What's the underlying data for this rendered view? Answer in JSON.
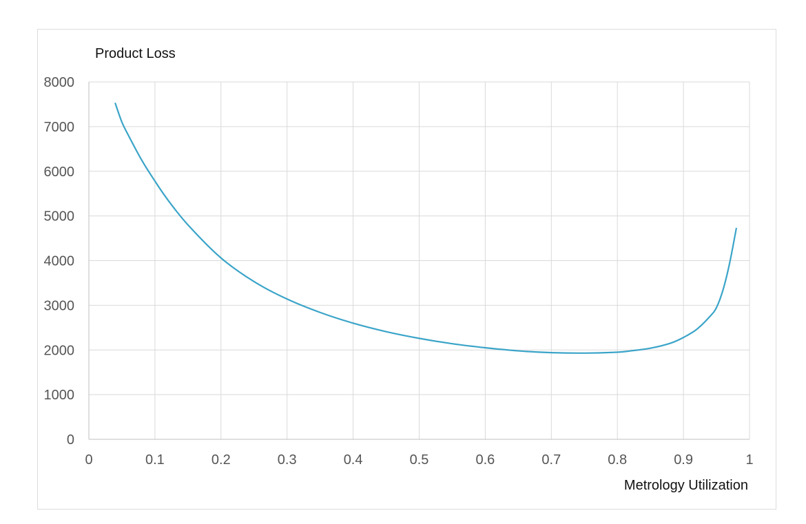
{
  "chart_data": {
    "type": "line",
    "title": "",
    "xlabel": "Metrology Utilization",
    "ylabel": "Product Loss",
    "xlim": [
      0,
      1
    ],
    "ylim": [
      0,
      8000
    ],
    "x_ticks": [
      "0",
      "0.1",
      "0.2",
      "0.3",
      "0.4",
      "0.5",
      "0.6",
      "0.7",
      "0.8",
      "0.9",
      "1"
    ],
    "y_ticks": [
      "0",
      "1000",
      "2000",
      "3000",
      "4000",
      "5000",
      "6000",
      "7000",
      "8000"
    ],
    "grid": true,
    "legend": "none",
    "series": [
      {
        "color": "#3aa4c8",
        "x": [
          0.04,
          0.05,
          0.06,
          0.08,
          0.1,
          0.12,
          0.15,
          0.2,
          0.25,
          0.3,
          0.35,
          0.4,
          0.45,
          0.5,
          0.55,
          0.6,
          0.65,
          0.7,
          0.75,
          0.8,
          0.82,
          0.85,
          0.88,
          0.9,
          0.92,
          0.94,
          0.95,
          0.96,
          0.97,
          0.98
        ],
        "y": [
          7520,
          7100,
          6800,
          6250,
          5780,
          5350,
          4800,
          4060,
          3530,
          3140,
          2840,
          2600,
          2410,
          2260,
          2140,
          2050,
          1980,
          1940,
          1930,
          1950,
          1980,
          2040,
          2150,
          2280,
          2460,
          2750,
          2950,
          3350,
          3950,
          4720
        ]
      }
    ]
  }
}
